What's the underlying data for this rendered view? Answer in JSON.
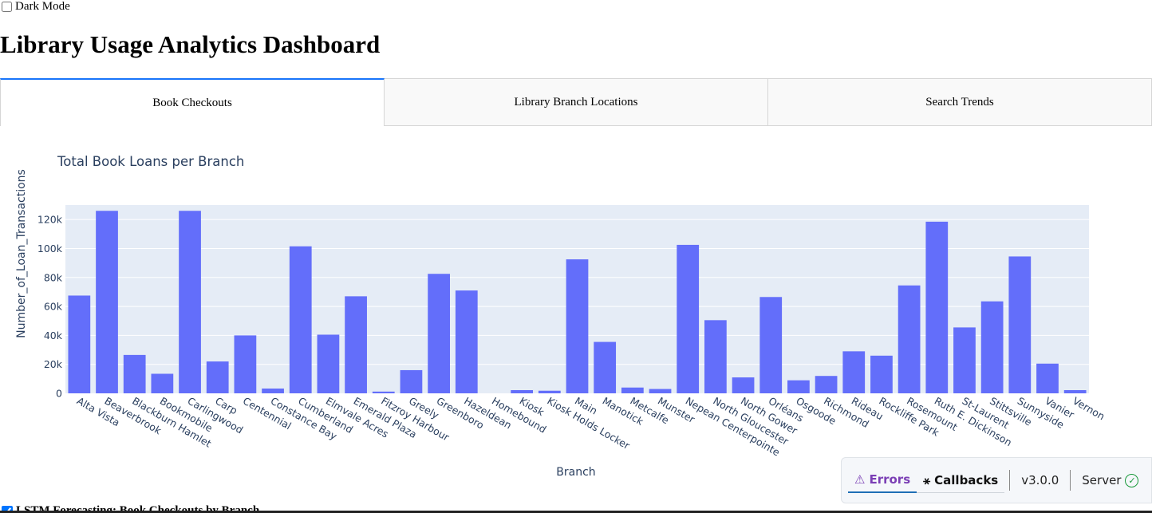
{
  "dark_mode": {
    "label": "Dark Mode",
    "checked": false
  },
  "page_title": "Library Usage Analytics Dashboard",
  "tabs": [
    {
      "label": "Book Checkouts",
      "active": true
    },
    {
      "label": "Library Branch Locations",
      "active": false
    },
    {
      "label": "Search Trends",
      "active": false
    }
  ],
  "chart_data": {
    "type": "bar",
    "title": "Total Book Loans per Branch",
    "xlabel": "Branch",
    "ylabel": "Number_of_Loan_Transactions",
    "ylim": [
      0,
      130000
    ],
    "yticks": [
      0,
      20000,
      40000,
      60000,
      80000,
      100000,
      120000
    ],
    "ytick_labels": [
      "0",
      "20k",
      "40k",
      "60k",
      "80k",
      "100k",
      "120k"
    ],
    "bar_color": "#636efa",
    "plot_bg": "#e5ecf6",
    "categories": [
      "Alta Vista",
      "Beaverbrook",
      "Blackburn Hamlet",
      "Bookmobile",
      "Carlingwood",
      "Carp",
      "Centennial",
      "Constance Bay",
      "Cumberland",
      "Elmvale Acres",
      "Emerald Plaza",
      "Fitzroy Harbour",
      "Greely",
      "Greenboro",
      "Hazeldean",
      "Homebound",
      "Kiosk",
      "Kiosk Holds Locker",
      "Main",
      "Manotick",
      "Metcalfe",
      "Munster",
      "Nepean Centerpointe",
      "North Gloucester",
      "North Gower",
      "Orléans",
      "Osgoode",
      "Richmond",
      "Rideau",
      "Rockliffe Park",
      "Rosemount",
      "Ruth E. Dickinson",
      "St-Laurent",
      "Stittsville",
      "Sunnyside",
      "Vanier",
      "Vernon"
    ],
    "values": [
      67500,
      126000,
      26500,
      13500,
      126000,
      22000,
      40000,
      3300,
      101500,
      40500,
      67000,
      1200,
      16000,
      82500,
      71000,
      0,
      2200,
      1800,
      92500,
      35500,
      4000,
      3000,
      102500,
      50500,
      11000,
      66500,
      9000,
      12000,
      29000,
      26000,
      74500,
      118500,
      45500,
      63500,
      94500,
      20500,
      2200
    ]
  },
  "debug_bar": {
    "errors_label": "Errors",
    "callbacks_label": "Callbacks",
    "version": "v3.0.0",
    "server_label": "Server"
  },
  "next_section": {
    "label": "LSTM Forecasting: Book Checkouts by Branch"
  }
}
